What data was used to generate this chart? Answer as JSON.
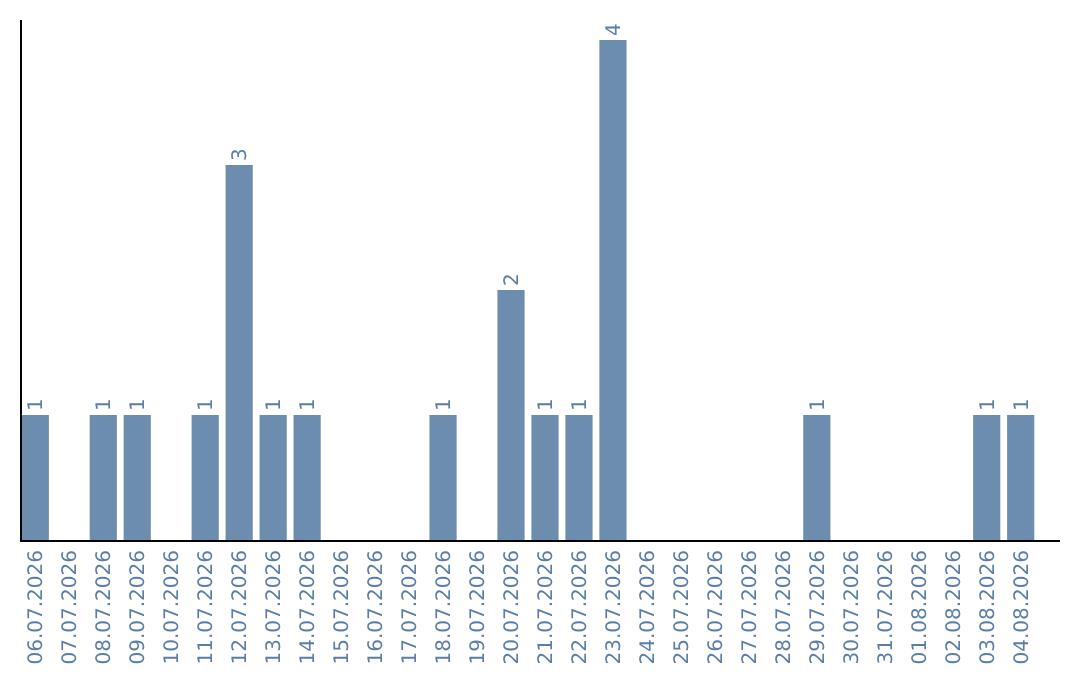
{
  "chart_data": {
    "type": "bar",
    "categories": [
      "06.07.2026",
      "07.07.2026",
      "08.07.2026",
      "09.07.2026",
      "10.07.2026",
      "11.07.2026",
      "12.07.2026",
      "13.07.2026",
      "14.07.2026",
      "15.07.2026",
      "16.07.2026",
      "17.07.2026",
      "18.07.2026",
      "19.07.2026",
      "20.07.2026",
      "21.07.2026",
      "22.07.2026",
      "23.07.2026",
      "24.07.2026",
      "25.07.2026",
      "26.07.2026",
      "27.07.2026",
      "28.07.2026",
      "29.07.2026",
      "30.07.2026",
      "31.07.2026",
      "01.08.2026",
      "02.08.2026",
      "03.08.2026",
      "04.08.2026"
    ],
    "values": [
      1,
      0,
      1,
      1,
      0,
      1,
      3,
      1,
      1,
      0,
      0,
      0,
      1,
      0,
      2,
      1,
      1,
      4,
      0,
      0,
      0,
      0,
      0,
      1,
      0,
      0,
      0,
      0,
      1,
      1
    ],
    "value_labels": [
      "1",
      null,
      "1",
      "1",
      null,
      "1",
      "3",
      "1",
      "1",
      null,
      null,
      null,
      "1",
      null,
      "2",
      "1",
      "1",
      "4",
      null,
      null,
      null,
      null,
      null,
      "1",
      null,
      null,
      null,
      null,
      "1",
      "1"
    ],
    "color": "#6d8daf",
    "tick_labels": "x"
  }
}
